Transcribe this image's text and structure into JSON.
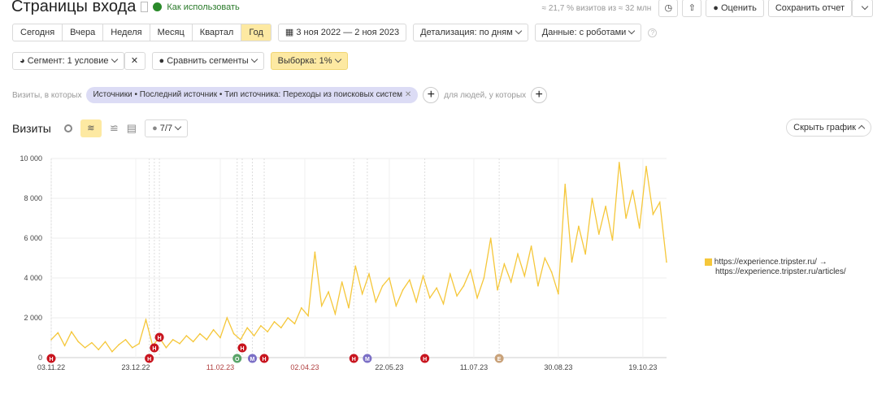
{
  "header": {
    "title": "Страницы входа",
    "help_link": "Как использовать",
    "sampling_info": "≈ 21,7 % визитов из ≈ 32 млн",
    "rate_label": "Оценить",
    "save_label": "Сохранить отчет"
  },
  "periods": [
    {
      "label": "Сегодня"
    },
    {
      "label": "Вчера"
    },
    {
      "label": "Неделя"
    },
    {
      "label": "Месяц"
    },
    {
      "label": "Квартал"
    },
    {
      "label": "Год",
      "selected": true
    }
  ],
  "date_range": "3 ноя 2022 — 2 ноя 2023",
  "detail": "Детализация: по дням",
  "data_mode": "Данные: с роботами",
  "segment": {
    "label": "Сегмент: 1 условие",
    "compare": "Сравнить сегменты",
    "sample": "Выборка: 1%"
  },
  "filter": {
    "prefix": "Визиты, в которых",
    "chip": "Источники • Последний источник • Тип источника: Переходы из поисковых систем",
    "people": "для людей, у которых"
  },
  "chart_header": {
    "metric": "Визиты",
    "notes": "7/7",
    "hide": "Скрыть график"
  },
  "legend": {
    "line1": "https://experience.tripster.ru/ →",
    "line2": "https://experience.tripster.ru/articles/"
  },
  "colors": {
    "series": "#f5c73a",
    "accent": "#fde9a2",
    "note_red": "#c8141e",
    "note_purple": "#7b6fc6",
    "note_green": "#5aa469",
    "note_tan": "#c9a27a"
  },
  "chart_data": {
    "type": "line",
    "ylim": [
      0,
      10000
    ],
    "grid": true,
    "yticks": [
      "0",
      "2 000",
      "4 000",
      "6 000",
      "8 000",
      "10 000"
    ],
    "xticks": [
      {
        "date": "2022-11-03",
        "label": "03.11.22"
      },
      {
        "date": "2022-12-23",
        "label": "23.12.22"
      },
      {
        "date": "2023-02-11",
        "label": "11.02.23",
        "weekend": true
      },
      {
        "date": "2023-04-02",
        "label": "02.04.23",
        "weekend": true
      },
      {
        "date": "2023-05-22",
        "label": "22.05.23"
      },
      {
        "date": "2023-07-11",
        "label": "11.07.23"
      },
      {
        "date": "2023-08-30",
        "label": "30.08.23"
      },
      {
        "date": "2023-10-19",
        "label": "19.10.23"
      }
    ],
    "xrange": [
      "2022-11-03",
      "2023-11-02"
    ],
    "x": [
      "2022-11-03",
      "2022-11-07",
      "2022-11-11",
      "2022-11-15",
      "2022-11-19",
      "2022-11-23",
      "2022-11-27",
      "2022-12-01",
      "2022-12-05",
      "2022-12-09",
      "2022-12-13",
      "2022-12-17",
      "2022-12-21",
      "2022-12-25",
      "2022-12-29",
      "2023-01-02",
      "2023-01-06",
      "2023-01-10",
      "2023-01-14",
      "2023-01-18",
      "2023-01-22",
      "2023-01-26",
      "2023-01-30",
      "2023-02-03",
      "2023-02-07",
      "2023-02-11",
      "2023-02-15",
      "2023-02-19",
      "2023-02-23",
      "2023-02-27",
      "2023-03-03",
      "2023-03-07",
      "2023-03-11",
      "2023-03-15",
      "2023-03-19",
      "2023-03-23",
      "2023-03-27",
      "2023-03-31",
      "2023-04-04",
      "2023-04-08",
      "2023-04-12",
      "2023-04-16",
      "2023-04-20",
      "2023-04-24",
      "2023-04-28",
      "2023-05-02",
      "2023-05-06",
      "2023-05-10",
      "2023-05-14",
      "2023-05-18",
      "2023-05-22",
      "2023-05-26",
      "2023-05-30",
      "2023-06-03",
      "2023-06-07",
      "2023-06-11",
      "2023-06-15",
      "2023-06-19",
      "2023-06-23",
      "2023-06-27",
      "2023-07-01",
      "2023-07-05",
      "2023-07-09",
      "2023-07-13",
      "2023-07-17",
      "2023-07-21",
      "2023-07-25",
      "2023-07-29",
      "2023-08-02",
      "2023-08-06",
      "2023-08-10",
      "2023-08-14",
      "2023-08-18",
      "2023-08-22",
      "2023-08-26",
      "2023-08-30",
      "2023-09-03",
      "2023-09-07",
      "2023-09-11",
      "2023-09-15",
      "2023-09-19",
      "2023-09-23",
      "2023-09-27",
      "2023-10-01",
      "2023-10-05",
      "2023-10-09",
      "2023-10-13",
      "2023-10-17",
      "2023-10-21",
      "2023-10-25",
      "2023-10-29",
      "2023-11-02"
    ],
    "series": [
      {
        "values": [
          900,
          1250,
          600,
          1300,
          800,
          500,
          750,
          400,
          800,
          300,
          650,
          900,
          500,
          700,
          1900,
          600,
          1000,
          500,
          900,
          700,
          1100,
          800,
          1200,
          900,
          1400,
          1000,
          2000,
          1200,
          900,
          1500,
          1100,
          1600,
          1300,
          1800,
          1500,
          2000,
          1700,
          2500,
          2100,
          5300,
          2600,
          3300,
          2200,
          3800,
          2500,
          4600,
          3200,
          4200,
          2800,
          3600,
          4000,
          2600,
          3400,
          3900,
          2800,
          4100,
          3000,
          3500,
          2700,
          4200,
          3100,
          3600,
          4400,
          3000,
          4000,
          6000,
          3400,
          4700,
          3800,
          5200,
          4100,
          5600,
          3600,
          5000,
          4300,
          3200,
          8700,
          4800,
          6600,
          5200,
          8000,
          6200,
          7600,
          5900,
          9800,
          7000,
          8400,
          6500,
          9600,
          7200,
          7800,
          4800
        ]
      }
    ],
    "annotations": [
      {
        "date": "2022-11-03",
        "letter": "Н",
        "color": "red"
      },
      {
        "date": "2022-12-31",
        "letter": "Н",
        "color": "red"
      },
      {
        "date": "2023-01-03",
        "letter": "Н",
        "color": "red"
      },
      {
        "date": "2023-01-06",
        "letter": "Н",
        "color": "red"
      },
      {
        "date": "2023-02-21",
        "letter": "О",
        "color": "green"
      },
      {
        "date": "2023-02-24",
        "letter": "Н",
        "color": "red"
      },
      {
        "date": "2023-03-02",
        "letter": "М",
        "color": "purple"
      },
      {
        "date": "2023-03-09",
        "letter": "Н",
        "color": "red"
      },
      {
        "date": "2023-05-01",
        "letter": "Н",
        "color": "red"
      },
      {
        "date": "2023-05-09",
        "letter": "М",
        "color": "purple"
      },
      {
        "date": "2023-06-12",
        "letter": "Н",
        "color": "red"
      },
      {
        "date": "2023-07-26",
        "letter": "Е",
        "color": "tan"
      }
    ]
  }
}
